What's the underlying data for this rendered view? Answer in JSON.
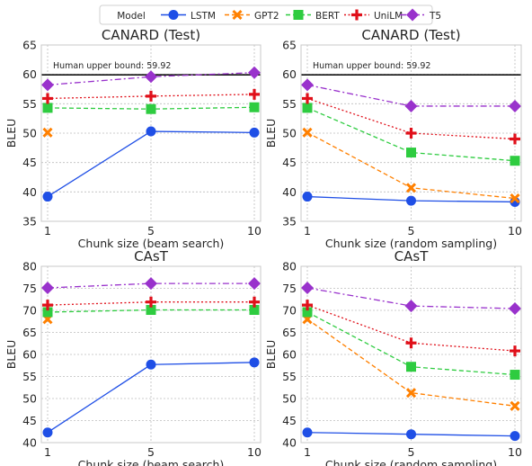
{
  "legend": {
    "title": "Model",
    "entries": [
      "LSTM",
      "GPT2",
      "BERT",
      "UniLM",
      "T5"
    ]
  },
  "series_styles": [
    {
      "name": "LSTM",
      "color": "#1f4fe6",
      "marker": "circle",
      "dash": "solid"
    },
    {
      "name": "GPT2",
      "color": "#ff8000",
      "marker": "x",
      "dash": "dashed"
    },
    {
      "name": "BERT",
      "color": "#2ecc40",
      "marker": "square",
      "dash": "dashed"
    },
    {
      "name": "UniLM",
      "color": "#e0101a",
      "marker": "plus",
      "dash": "dotted"
    },
    {
      "name": "T5",
      "color": "#9932cc",
      "marker": "diamond",
      "dash": "dashdot"
    }
  ],
  "chart_data": [
    {
      "type": "line",
      "title": "CANARD (Test)",
      "xlabel": "Chunk size (beam search)",
      "ylabel": "BLEU",
      "x": [
        "1",
        "5",
        "10"
      ],
      "ylim": [
        35,
        65
      ],
      "yticks": [
        35,
        40,
        45,
        50,
        55,
        60,
        65
      ],
      "grid": true,
      "reference_line": {
        "label": "Human upper bound: 59.92",
        "value": 59.92
      },
      "series": [
        {
          "name": "LSTM",
          "values": [
            39.2,
            50.3,
            50.1
          ]
        },
        {
          "name": "GPT2",
          "values": [
            50.1,
            null,
            null
          ]
        },
        {
          "name": "BERT",
          "values": [
            54.3,
            54.1,
            54.4
          ]
        },
        {
          "name": "UniLM",
          "values": [
            55.9,
            56.3,
            56.6
          ]
        },
        {
          "name": "T5",
          "values": [
            58.2,
            59.6,
            60.3
          ]
        }
      ]
    },
    {
      "type": "line",
      "title": "CANARD (Test)",
      "xlabel": "Chunk size (random sampling)",
      "ylabel": "BLEU",
      "x": [
        "1",
        "5",
        "10"
      ],
      "ylim": [
        35,
        65
      ],
      "yticks": [
        35,
        40,
        45,
        50,
        55,
        60,
        65
      ],
      "grid": true,
      "reference_line": {
        "label": "Human upper bound: 59.92",
        "value": 59.92
      },
      "series": [
        {
          "name": "LSTM",
          "values": [
            39.2,
            38.5,
            38.3
          ]
        },
        {
          "name": "GPT2",
          "values": [
            50.1,
            40.7,
            38.9
          ]
        },
        {
          "name": "BERT",
          "values": [
            54.3,
            46.7,
            45.3
          ]
        },
        {
          "name": "UniLM",
          "values": [
            55.9,
            50.0,
            49.0
          ]
        },
        {
          "name": "T5",
          "values": [
            58.2,
            54.6,
            54.6
          ]
        }
      ]
    },
    {
      "type": "line",
      "title": "CAsT",
      "xlabel": "Chunk size (beam search)",
      "ylabel": "BLEU",
      "x": [
        "1",
        "5",
        "10"
      ],
      "ylim": [
        40,
        80
      ],
      "yticks": [
        40,
        45,
        50,
        55,
        60,
        65,
        70,
        75,
        80
      ],
      "grid": true,
      "series": [
        {
          "name": "LSTM",
          "values": [
            42.3,
            57.7,
            58.2
          ]
        },
        {
          "name": "GPT2",
          "values": [
            68.0,
            null,
            null
          ]
        },
        {
          "name": "BERT",
          "values": [
            69.6,
            70.1,
            70.1
          ]
        },
        {
          "name": "UniLM",
          "values": [
            71.2,
            71.9,
            71.9
          ]
        },
        {
          "name": "T5",
          "values": [
            75.1,
            76.1,
            76.1
          ]
        }
      ]
    },
    {
      "type": "line",
      "title": "CAsT",
      "xlabel": "Chunk size (random sampling)",
      "ylabel": "BLEU",
      "x": [
        "1",
        "5",
        "10"
      ],
      "ylim": [
        40,
        80
      ],
      "yticks": [
        40,
        45,
        50,
        55,
        60,
        65,
        70,
        75,
        80
      ],
      "grid": true,
      "series": [
        {
          "name": "LSTM",
          "values": [
            42.3,
            41.9,
            41.5
          ]
        },
        {
          "name": "GPT2",
          "values": [
            68.0,
            51.3,
            48.3
          ]
        },
        {
          "name": "BERT",
          "values": [
            69.6,
            57.2,
            55.4
          ]
        },
        {
          "name": "UniLM",
          "values": [
            71.2,
            62.6,
            60.8
          ]
        },
        {
          "name": "T5",
          "values": [
            75.1,
            71.0,
            70.4
          ]
        }
      ]
    }
  ]
}
